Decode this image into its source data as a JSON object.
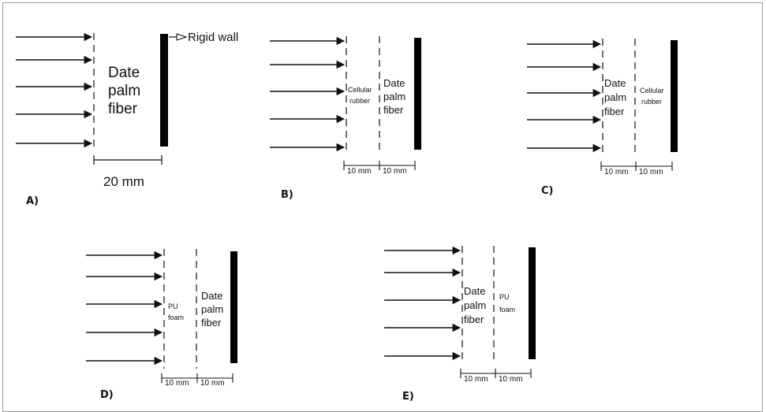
{
  "panels": [
    {
      "id": "A",
      "label": "A)",
      "dimension": "20 mm",
      "layers": [
        [
          "Date",
          "palm",
          "fiber"
        ]
      ],
      "wall_label": "Rigid wall"
    },
    {
      "id": "B",
      "label": "B)",
      "dimensions": [
        "10 mm",
        "10 mm"
      ],
      "layers": [
        [
          "Cellular",
          "rubber"
        ],
        [
          "Date",
          "palm",
          "fiber"
        ]
      ]
    },
    {
      "id": "C",
      "label": "C)",
      "dimensions": [
        "10 mm",
        "10 mm"
      ],
      "layers": [
        [
          "Date",
          "palm",
          "fiber"
        ],
        [
          "Cellular",
          "rubber"
        ]
      ]
    },
    {
      "id": "D",
      "label": "D)",
      "dimensions": [
        "10 mm",
        "10 mm"
      ],
      "layers": [
        [
          "PU",
          "foam"
        ],
        [
          "Date",
          "palm",
          "fiber"
        ]
      ]
    },
    {
      "id": "E",
      "label": "E)",
      "dimensions": [
        "10 mm",
        "10 mm"
      ],
      "layers": [
        [
          "Date",
          "palm",
          "fiber"
        ],
        [
          "PU",
          "foam"
        ]
      ]
    }
  ],
  "colors": {
    "line": "#111111",
    "wall": "#000000",
    "border": "#9a9a9a"
  }
}
